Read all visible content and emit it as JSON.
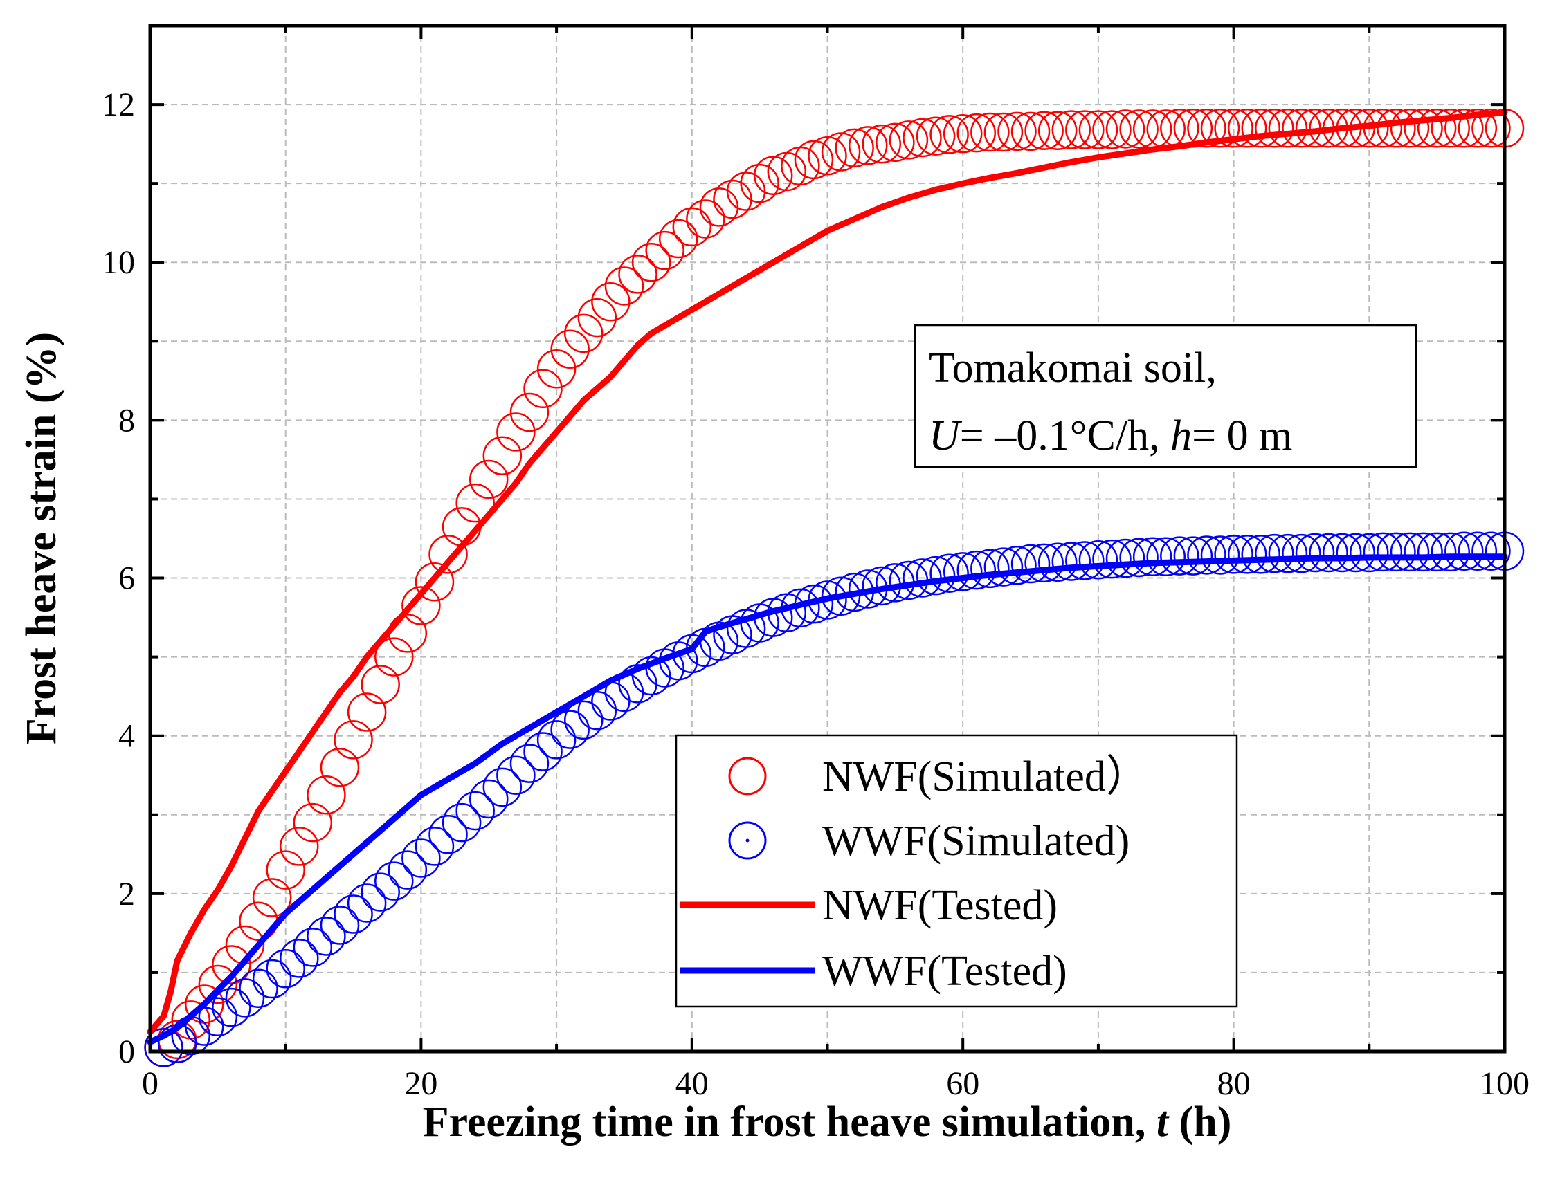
{
  "colors": {
    "nwf": "#ff0000",
    "wwf": "#0000ff",
    "grid": "#bbbbbb",
    "axis": "#000000"
  },
  "annotation": {
    "line1": "Tomakomai soil,",
    "line2_var1": "U",
    "line2_rest1": "= –0.1°C/h, ",
    "line2_var2": "h",
    "line2_rest2": "= 0 m"
  },
  "chart_data": {
    "type": "line",
    "title": "",
    "xlabel": "Freezing time in frost heave simulation, ",
    "xlabel_var": "t",
    "xlabel_unit": " (h)",
    "ylabel": "Frost heave strain (%)",
    "xlim": [
      0,
      100
    ],
    "ylim": [
      0,
      13
    ],
    "xticks": [
      0,
      20,
      40,
      60,
      80,
      100
    ],
    "yticks": [
      0,
      2,
      4,
      6,
      8,
      10,
      12
    ],
    "grid": true,
    "legend_position": "lower-right",
    "series": [
      {
        "name": "NWF(Simulated）",
        "style": "circles",
        "color": "#ff0000",
        "x": [
          1,
          2,
          3,
          4,
          5,
          6,
          7,
          8,
          9,
          10,
          11,
          12,
          13,
          14,
          15,
          16,
          17,
          18,
          19,
          20,
          21,
          22,
          23,
          24,
          25,
          26,
          27,
          28,
          29,
          30,
          31,
          32,
          33,
          34,
          35,
          36,
          37,
          38,
          39,
          40,
          41,
          42,
          43,
          44,
          45,
          46,
          47,
          48,
          49,
          50,
          51,
          52,
          53,
          54,
          55,
          56,
          57,
          58,
          59,
          60,
          61,
          62,
          63,
          64,
          65,
          66,
          67,
          68,
          69,
          70,
          71,
          72,
          73,
          74,
          75,
          76,
          77,
          78,
          79,
          80,
          81,
          82,
          83,
          84,
          85,
          86,
          87,
          88,
          89,
          90,
          91,
          92,
          93,
          94,
          95,
          96,
          97,
          98,
          99,
          100
        ],
        "y": [
          0.05,
          0.15,
          0.4,
          0.6,
          0.85,
          1.1,
          1.35,
          1.65,
          1.95,
          2.3,
          2.6,
          2.9,
          3.25,
          3.6,
          3.95,
          4.3,
          4.65,
          5.0,
          5.3,
          5.65,
          5.95,
          6.3,
          6.65,
          6.95,
          7.25,
          7.55,
          7.85,
          8.1,
          8.4,
          8.65,
          8.9,
          9.1,
          9.3,
          9.5,
          9.7,
          9.85,
          10.0,
          10.15,
          10.3,
          10.45,
          10.55,
          10.7,
          10.8,
          10.9,
          11.0,
          11.1,
          11.15,
          11.22,
          11.3,
          11.35,
          11.4,
          11.45,
          11.48,
          11.5,
          11.52,
          11.55,
          11.58,
          11.6,
          11.62,
          11.63,
          11.64,
          11.65,
          11.65,
          11.66,
          11.66,
          11.67,
          11.67,
          11.68,
          11.68,
          11.68,
          11.68,
          11.69,
          11.69,
          11.69,
          11.69,
          11.7,
          11.7,
          11.7,
          11.7,
          11.7,
          11.7,
          11.7,
          11.7,
          11.7,
          11.7,
          11.7,
          11.7,
          11.7,
          11.7,
          11.7,
          11.7,
          11.7,
          11.7,
          11.7,
          11.7,
          11.7,
          11.7,
          11.7,
          11.7,
          11.7
        ]
      },
      {
        "name": "WWF(Simulated)",
        "style": "circles",
        "color": "#0000ff",
        "x": [
          1,
          2,
          3,
          4,
          5,
          6,
          7,
          8,
          9,
          10,
          11,
          12,
          13,
          14,
          15,
          16,
          17,
          18,
          19,
          20,
          21,
          22,
          23,
          24,
          25,
          26,
          27,
          28,
          29,
          30,
          31,
          32,
          33,
          34,
          35,
          36,
          37,
          38,
          39,
          40,
          41,
          42,
          43,
          44,
          45,
          46,
          47,
          48,
          49,
          50,
          51,
          52,
          53,
          54,
          55,
          56,
          57,
          58,
          59,
          60,
          61,
          62,
          63,
          64,
          65,
          66,
          67,
          68,
          69,
          70,
          71,
          72,
          73,
          74,
          75,
          76,
          77,
          78,
          79,
          80,
          81,
          82,
          83,
          84,
          85,
          86,
          87,
          88,
          89,
          90,
          91,
          92,
          93,
          94,
          95,
          96,
          97,
          98,
          99,
          100
        ],
        "y": [
          0.05,
          0.1,
          0.2,
          0.32,
          0.44,
          0.56,
          0.68,
          0.8,
          0.92,
          1.05,
          1.18,
          1.32,
          1.46,
          1.6,
          1.74,
          1.88,
          2.02,
          2.16,
          2.3,
          2.45,
          2.6,
          2.75,
          2.9,
          3.05,
          3.2,
          3.35,
          3.5,
          3.65,
          3.8,
          3.95,
          4.08,
          4.2,
          4.32,
          4.44,
          4.55,
          4.66,
          4.76,
          4.86,
          4.95,
          5.04,
          5.12,
          5.2,
          5.28,
          5.36,
          5.43,
          5.5,
          5.56,
          5.62,
          5.67,
          5.72,
          5.77,
          5.82,
          5.86,
          5.9,
          5.94,
          5.97,
          6.0,
          6.03,
          6.06,
          6.08,
          6.1,
          6.12,
          6.14,
          6.16,
          6.18,
          6.19,
          6.2,
          6.21,
          6.22,
          6.23,
          6.24,
          6.25,
          6.26,
          6.27,
          6.27,
          6.28,
          6.28,
          6.29,
          6.29,
          6.3,
          6.3,
          6.3,
          6.31,
          6.31,
          6.31,
          6.32,
          6.32,
          6.32,
          6.32,
          6.32,
          6.33,
          6.33,
          6.33,
          6.33,
          6.33,
          6.33,
          6.34,
          6.34,
          6.34,
          6.34
        ]
      },
      {
        "name": "NWF(Tested)",
        "style": "line",
        "color": "#ff0000",
        "x": [
          0,
          1,
          1.5,
          2,
          3,
          4,
          5,
          6,
          7,
          8,
          9,
          10,
          11,
          12,
          13,
          14,
          15,
          16,
          17,
          18,
          19,
          20,
          21,
          22,
          23,
          24,
          25,
          26,
          27,
          28,
          29,
          30,
          31,
          32,
          33,
          34,
          35,
          36,
          37,
          38,
          39,
          40,
          42,
          44,
          46,
          48,
          50,
          52,
          54,
          56,
          58,
          60,
          62,
          64,
          66,
          68,
          70,
          72,
          74,
          76,
          78,
          80,
          82,
          84,
          86,
          88,
          90,
          92,
          94,
          96,
          98,
          100
        ],
        "y": [
          0.25,
          0.45,
          0.75,
          1.15,
          1.5,
          1.8,
          2.05,
          2.35,
          2.7,
          3.05,
          3.3,
          3.55,
          3.8,
          4.05,
          4.3,
          4.55,
          4.75,
          5.0,
          5.2,
          5.4,
          5.6,
          5.8,
          6.0,
          6.2,
          6.4,
          6.6,
          6.8,
          7.0,
          7.2,
          7.45,
          7.65,
          7.85,
          8.05,
          8.25,
          8.4,
          8.55,
          8.75,
          8.95,
          9.1,
          9.2,
          9.3,
          9.4,
          9.6,
          9.8,
          10.0,
          10.2,
          10.4,
          10.55,
          10.7,
          10.82,
          10.92,
          11.0,
          11.07,
          11.13,
          11.2,
          11.27,
          11.33,
          11.38,
          11.43,
          11.47,
          11.52,
          11.56,
          11.6,
          11.63,
          11.66,
          11.7,
          11.73,
          11.77,
          11.8,
          11.83,
          11.87,
          11.9
        ]
      },
      {
        "name": "WWF(Tested)",
        "style": "line",
        "color": "#0000ff",
        "x": [
          0,
          1,
          2,
          3,
          4,
          5,
          6,
          7,
          8,
          9,
          10,
          12,
          14,
          16,
          18,
          20,
          22,
          24,
          26,
          28,
          30,
          32,
          34,
          36,
          38,
          40,
          41,
          42,
          44,
          46,
          48,
          50,
          52,
          54,
          56,
          58,
          60,
          62,
          64,
          66,
          68,
          70,
          72,
          74,
          76,
          78,
          80,
          82,
          84,
          86,
          88,
          90,
          92,
          94,
          96,
          98,
          100
        ],
        "y": [
          0.12,
          0.2,
          0.3,
          0.45,
          0.6,
          0.78,
          0.95,
          1.15,
          1.35,
          1.55,
          1.75,
          2.05,
          2.35,
          2.65,
          2.95,
          3.25,
          3.45,
          3.65,
          3.9,
          4.1,
          4.3,
          4.5,
          4.7,
          4.85,
          4.98,
          5.1,
          5.32,
          5.38,
          5.48,
          5.58,
          5.66,
          5.74,
          5.8,
          5.86,
          5.91,
          5.96,
          6.0,
          6.04,
          6.07,
          6.1,
          6.13,
          6.15,
          6.17,
          6.19,
          6.2,
          6.21,
          6.22,
          6.23,
          6.24,
          6.25,
          6.25,
          6.26,
          6.26,
          6.26,
          6.27,
          6.27,
          6.27
        ]
      }
    ]
  }
}
